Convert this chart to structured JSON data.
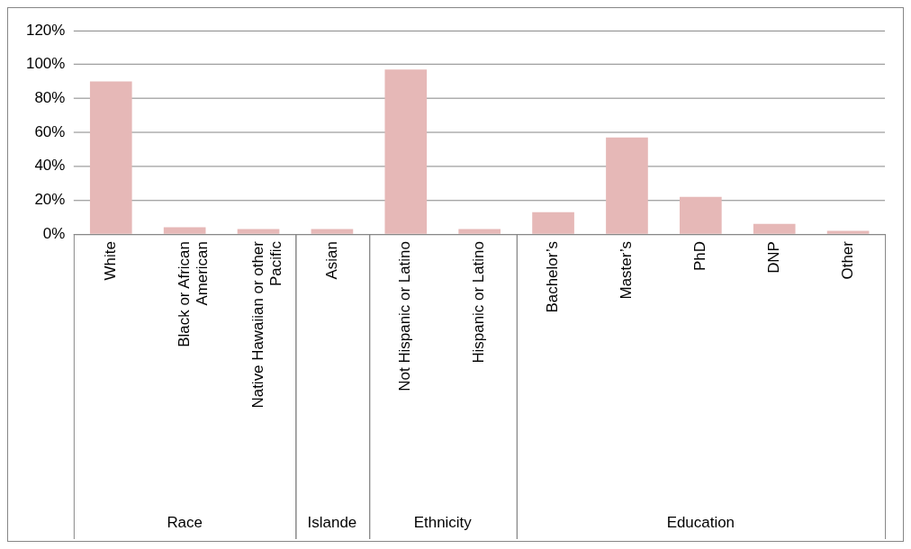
{
  "chart_data": {
    "type": "bar",
    "categories": [
      "White",
      "Black or African American",
      "Native Hawaiian or other Pacific",
      "Asian",
      "Not Hispanic or Latino",
      "Hispanic or Latino",
      "Bachelor’s",
      "Master’s",
      "PhD",
      "DNP",
      "Other"
    ],
    "values": [
      90,
      4,
      3,
      3,
      97,
      3,
      13,
      57,
      22,
      6,
      2
    ],
    "color": "#e6b8b7",
    "ylim": [
      0,
      120
    ],
    "yticks": [
      {
        "value": 0,
        "label": "0%"
      },
      {
        "value": 20,
        "label": "20%"
      },
      {
        "value": 40,
        "label": "40%"
      },
      {
        "value": 60,
        "label": "60%"
      },
      {
        "value": 80,
        "label": "80%"
      },
      {
        "value": 100,
        "label": "100%"
      },
      {
        "value": 120,
        "label": "120%"
      }
    ],
    "grid": "y",
    "annotations": [
      "Race",
      "Islande",
      "Ethnicity",
      "Education"
    ]
  }
}
